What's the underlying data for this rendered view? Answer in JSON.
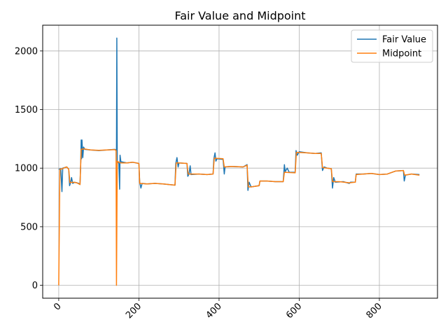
{
  "chart_data": {
    "type": "line",
    "title": "Fair Value and Midpoint",
    "xlabel": "",
    "ylabel": "",
    "xlim": [
      -40,
      945
    ],
    "ylim": [
      -110,
      2220
    ],
    "xticks": [
      0,
      200,
      400,
      600,
      800
    ],
    "yticks": [
      0,
      500,
      1000,
      1500,
      2000
    ],
    "grid": true,
    "legend_position": "top-right",
    "series": [
      {
        "name": "Fair Value",
        "color": "#1f77b4",
        "points": [
          [
            0,
            990
          ],
          [
            5,
            995
          ],
          [
            8,
            800
          ],
          [
            10,
            1000
          ],
          [
            15,
            1005
          ],
          [
            20,
            1010
          ],
          [
            25,
            990
          ],
          [
            27,
            850
          ],
          [
            30,
            880
          ],
          [
            32,
            920
          ],
          [
            35,
            870
          ],
          [
            40,
            880
          ],
          [
            45,
            875
          ],
          [
            50,
            870
          ],
          [
            53,
            860
          ],
          [
            55,
            1060
          ],
          [
            56,
            1240
          ],
          [
            57,
            1080
          ],
          [
            58,
            1240
          ],
          [
            60,
            1090
          ],
          [
            62,
            1180
          ],
          [
            65,
            1160
          ],
          [
            80,
            1155
          ],
          [
            100,
            1150
          ],
          [
            120,
            1155
          ],
          [
            140,
            1160
          ],
          [
            144,
            1155
          ],
          [
            145,
            2110
          ],
          [
            146,
            1055
          ],
          [
            148,
            1050
          ],
          [
            150,
            1040
          ],
          [
            152,
            820
          ],
          [
            153,
            1110
          ],
          [
            155,
            1055
          ],
          [
            170,
            1045
          ],
          [
            185,
            1050
          ],
          [
            200,
            1040
          ],
          [
            202,
            880
          ],
          [
            205,
            830
          ],
          [
            208,
            870
          ],
          [
            220,
            865
          ],
          [
            240,
            870
          ],
          [
            260,
            865
          ],
          [
            290,
            855
          ],
          [
            292,
            1040
          ],
          [
            295,
            1090
          ],
          [
            298,
            1010
          ],
          [
            300,
            1045
          ],
          [
            320,
            1040
          ],
          [
            322,
            930
          ],
          [
            325,
            950
          ],
          [
            328,
            1020
          ],
          [
            330,
            945
          ],
          [
            350,
            950
          ],
          [
            370,
            945
          ],
          [
            385,
            950
          ],
          [
            387,
            1080
          ],
          [
            390,
            1130
          ],
          [
            392,
            1060
          ],
          [
            395,
            1080
          ],
          [
            410,
            1075
          ],
          [
            413,
            950
          ],
          [
            415,
            1010
          ],
          [
            430,
            1015
          ],
          [
            460,
            1010
          ],
          [
            470,
            1030
          ],
          [
            472,
            810
          ],
          [
            475,
            880
          ],
          [
            480,
            840
          ],
          [
            500,
            850
          ],
          [
            502,
            890
          ],
          [
            520,
            890
          ],
          [
            540,
            885
          ],
          [
            560,
            885
          ],
          [
            563,
            1030
          ],
          [
            565,
            970
          ],
          [
            570,
            1000
          ],
          [
            575,
            965
          ],
          [
            590,
            965
          ],
          [
            592,
            1150
          ],
          [
            595,
            1110
          ],
          [
            600,
            1140
          ],
          [
            620,
            1130
          ],
          [
            640,
            1125
          ],
          [
            655,
            1130
          ],
          [
            658,
            980
          ],
          [
            662,
            1010
          ],
          [
            670,
            1000
          ],
          [
            680,
            995
          ],
          [
            683,
            830
          ],
          [
            686,
            920
          ],
          [
            690,
            880
          ],
          [
            710,
            885
          ],
          [
            725,
            870
          ],
          [
            728,
            880
          ],
          [
            740,
            880
          ],
          [
            742,
            950
          ],
          [
            760,
            950
          ],
          [
            780,
            955
          ],
          [
            800,
            945
          ],
          [
            820,
            950
          ],
          [
            840,
            975
          ],
          [
            860,
            980
          ],
          [
            862,
            890
          ],
          [
            865,
            940
          ],
          [
            880,
            950
          ],
          [
            900,
            945
          ]
        ]
      },
      {
        "name": "Midpoint",
        "color": "#ff7f0e",
        "points": [
          [
            0,
            0
          ],
          [
            3,
            990
          ],
          [
            10,
            995
          ],
          [
            15,
            1005
          ],
          [
            20,
            1010
          ],
          [
            25,
            990
          ],
          [
            28,
            875
          ],
          [
            35,
            880
          ],
          [
            45,
            875
          ],
          [
            53,
            860
          ],
          [
            56,
            1160
          ],
          [
            62,
            1165
          ],
          [
            80,
            1155
          ],
          [
            100,
            1152
          ],
          [
            120,
            1155
          ],
          [
            140,
            1158
          ],
          [
            143,
            1150
          ],
          [
            144,
            0
          ],
          [
            146,
            1060
          ],
          [
            150,
            1050
          ],
          [
            155,
            1045
          ],
          [
            170,
            1045
          ],
          [
            185,
            1050
          ],
          [
            200,
            1040
          ],
          [
            202,
            870
          ],
          [
            220,
            865
          ],
          [
            240,
            870
          ],
          [
            260,
            865
          ],
          [
            290,
            855
          ],
          [
            293,
            1045
          ],
          [
            300,
            1045
          ],
          [
            320,
            1040
          ],
          [
            323,
            950
          ],
          [
            350,
            950
          ],
          [
            370,
            945
          ],
          [
            385,
            950
          ],
          [
            388,
            1085
          ],
          [
            410,
            1080
          ],
          [
            413,
            1010
          ],
          [
            430,
            1015
          ],
          [
            460,
            1010
          ],
          [
            470,
            1025
          ],
          [
            473,
            840
          ],
          [
            480,
            840
          ],
          [
            500,
            850
          ],
          [
            502,
            890
          ],
          [
            520,
            890
          ],
          [
            540,
            885
          ],
          [
            560,
            885
          ],
          [
            563,
            965
          ],
          [
            590,
            960
          ],
          [
            593,
            1135
          ],
          [
            620,
            1130
          ],
          [
            640,
            1125
          ],
          [
            655,
            1125
          ],
          [
            658,
            1005
          ],
          [
            680,
            995
          ],
          [
            683,
            885
          ],
          [
            700,
            885
          ],
          [
            725,
            875
          ],
          [
            740,
            880
          ],
          [
            742,
            945
          ],
          [
            760,
            950
          ],
          [
            780,
            955
          ],
          [
            800,
            945
          ],
          [
            820,
            950
          ],
          [
            840,
            975
          ],
          [
            860,
            980
          ],
          [
            863,
            940
          ],
          [
            880,
            950
          ],
          [
            900,
            940
          ]
        ]
      }
    ]
  }
}
